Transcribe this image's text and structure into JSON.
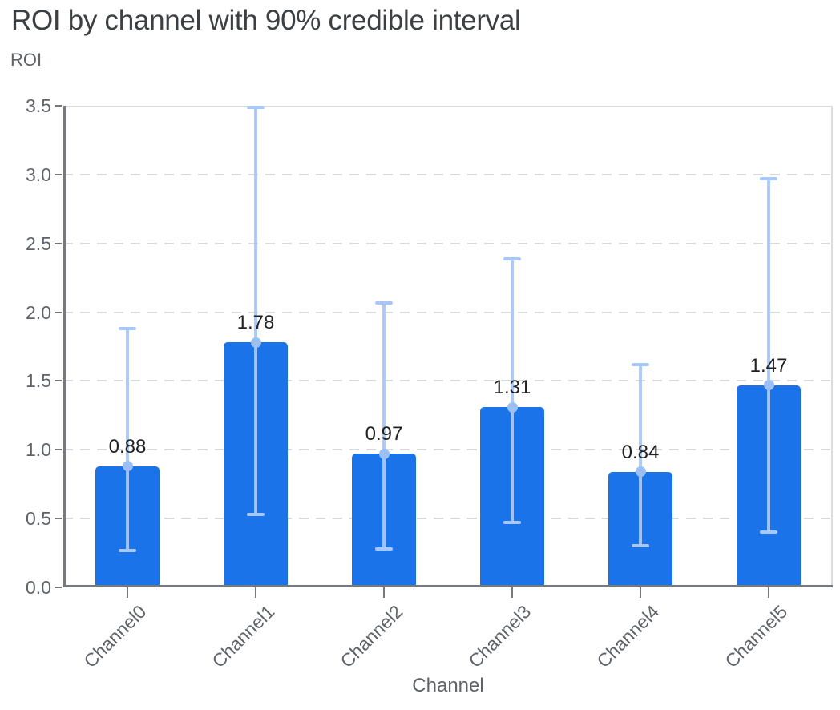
{
  "chart_data": {
    "type": "bar",
    "title": "ROI by channel with 90% credible interval",
    "ylabel": "ROI",
    "xlabel": "Channel",
    "categories": [
      "Channel0",
      "Channel1",
      "Channel2",
      "Channel3",
      "Channel4",
      "Channel5"
    ],
    "values": [
      0.88,
      1.78,
      0.97,
      1.31,
      0.84,
      1.47
    ],
    "value_labels": [
      "0.88",
      "1.78",
      "0.97",
      "1.31",
      "0.84",
      "1.47"
    ],
    "error_low": [
      0.27,
      0.53,
      0.28,
      0.47,
      0.3,
      0.4
    ],
    "error_high": [
      1.88,
      3.49,
      2.07,
      2.39,
      1.62,
      2.97
    ],
    "ylim": [
      0,
      3.5
    ],
    "yticks": [
      "0.0",
      "0.5",
      "1.0",
      "1.5",
      "2.0",
      "2.5",
      "3.0",
      "3.5"
    ],
    "grid": "horizontal dashed",
    "legend": "none",
    "colors": {
      "bar": "#1a73e8",
      "error_bar": "#a8c7fa",
      "error_dot": "#9cc0f6",
      "grid_line": "#dadce0",
      "axis_line": "#75797e",
      "title_text": "#3c4043",
      "axis_text": "#5f6368",
      "value_text": "#202124",
      "background": "#ffffff"
    }
  }
}
